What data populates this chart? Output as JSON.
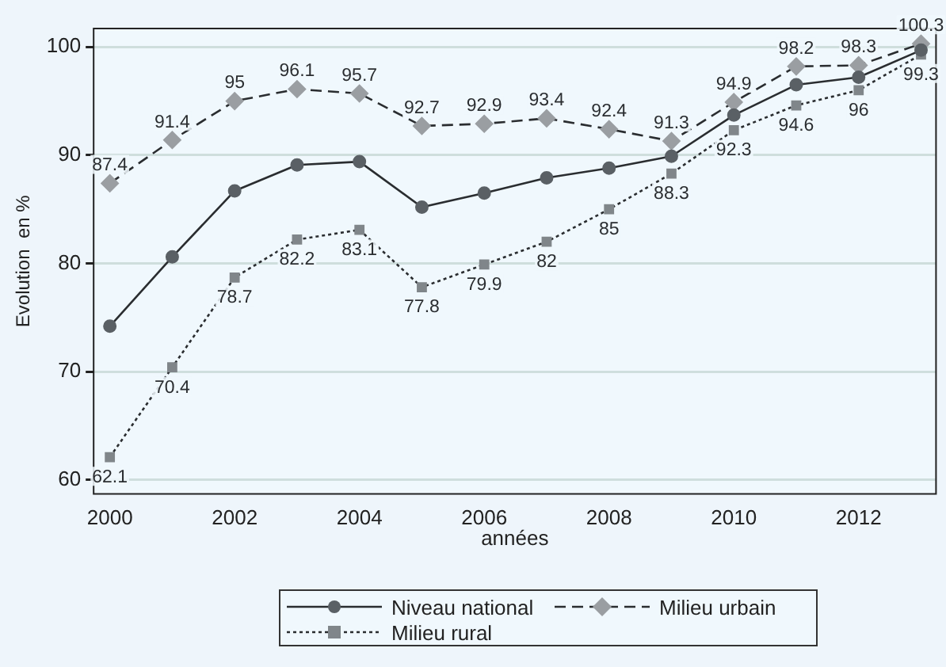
{
  "chart_data": {
    "type": "line",
    "xlabel": "années",
    "ylabel": "Evolution  en %",
    "x": [
      2000,
      2001,
      2002,
      2003,
      2004,
      2005,
      2006,
      2007,
      2008,
      2009,
      2010,
      2011,
      2012,
      2013
    ],
    "xlim": [
      1999.74,
      2013.24
    ],
    "xticks": [
      2000,
      2002,
      2004,
      2006,
      2008,
      2010,
      2012
    ],
    "ylim": [
      58.7,
      101.7
    ],
    "yticks": [
      60,
      70,
      80,
      90,
      100
    ],
    "grid": "y",
    "legend": "bottom",
    "series": [
      {
        "name": "Niveau national",
        "color": "#5a6065",
        "marker": "circle",
        "line_style": "solid",
        "values": [
          74.2,
          80.6,
          86.7,
          89.1,
          89.4,
          85.2,
          86.5,
          87.9,
          88.8,
          89.9,
          93.7,
          96.5,
          97.2,
          99.7
        ]
      },
      {
        "name": "Milieu urbain",
        "color": "#9a9ea2",
        "marker": "diamond",
        "line_style": "dashed",
        "values": [
          87.4,
          91.4,
          95,
          96.1,
          95.7,
          92.7,
          92.9,
          93.4,
          92.4,
          91.3,
          94.9,
          98.2,
          98.3,
          100.3
        ],
        "value_labels": [
          "87.4",
          "91.4",
          "95",
          "96.1",
          "95.7",
          "92.7",
          "92.9",
          "93.4",
          "92.4",
          "91.3",
          "94.9",
          "98.2",
          "98.3",
          "100.3"
        ]
      },
      {
        "name": "Milieu rural",
        "color": "#80868a",
        "marker": "square",
        "line_style": "dotted",
        "values": [
          62.1,
          70.4,
          78.7,
          82.2,
          83.1,
          77.8,
          79.9,
          82,
          85,
          88.3,
          92.3,
          94.6,
          96,
          99.3
        ],
        "value_labels": [
          "62.1",
          "70.4",
          "78.7",
          "82.2",
          "83.1",
          "77.8",
          "79.9",
          "82",
          "85",
          "88.3",
          "92.3",
          "94.6",
          "96",
          "99.3"
        ]
      }
    ]
  }
}
